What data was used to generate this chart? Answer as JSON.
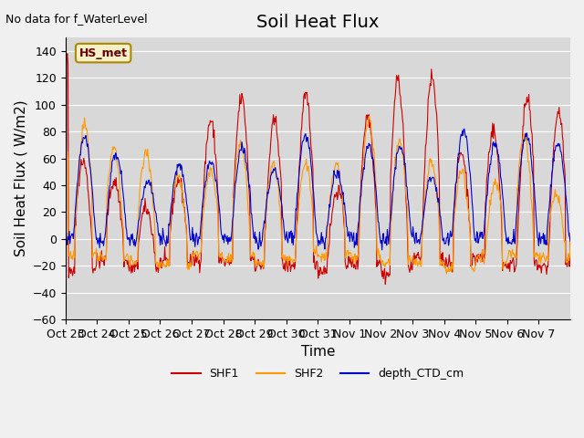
{
  "title": "Soil Heat Flux",
  "ylabel": "Soil Heat Flux ( W/m2)",
  "xlabel": "Time",
  "top_left_text": "No data for f_WaterLevel",
  "legend_label_text": "HS_met",
  "ylim": [
    -60,
    150
  ],
  "yticks": [
    -60,
    -40,
    -20,
    0,
    20,
    40,
    60,
    80,
    100,
    120,
    140
  ],
  "xtick_labels": [
    "Oct 23",
    "Oct 24",
    "Oct 25",
    "Oct 26",
    "Oct 27",
    "Oct 28",
    "Oct 29",
    "Oct 30",
    "Oct 31",
    "Nov 1",
    "Nov 2",
    "Nov 3",
    "Nov 4",
    "Nov 5",
    "Nov 6",
    "Nov 7"
  ],
  "series_colors": {
    "SHF1": "#cc0000",
    "SHF2": "#ff9900",
    "depth_CTD_cm": "#0000cc"
  },
  "fig_bg_color": "#f0f0f0",
  "plot_bg_color": "#d8d8d8",
  "title_fontsize": 14,
  "axis_label_fontsize": 11,
  "tick_fontsize": 9,
  "n_days": 16,
  "n_per_day": 48
}
